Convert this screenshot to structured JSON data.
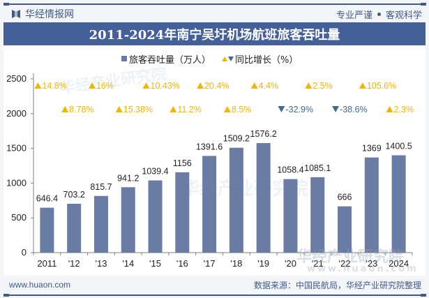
{
  "header": {
    "brand": "华经情报网",
    "slogan_left": "专业严谨",
    "slogan_right": "客观科学",
    "title": "2011-2024年南宁吴圩机场航班旅客吞吐量"
  },
  "legend": {
    "series_bar": "旅客吞吐量（万人）",
    "series_growth": "同比增长（%）"
  },
  "footer": {
    "url": "www.huaon.com",
    "source": "数据来源：中国民航局，华经产业研究院整理"
  },
  "watermarks": {
    "org": "华经产业研究院",
    "site": "www.huaon.com"
  },
  "colors": {
    "bar": "#697ca3",
    "up": "#f2b600",
    "down": "#3f6c8e",
    "brand": "#3e5a8a"
  },
  "chart_data": {
    "type": "bar",
    "title": "2011-2024年南宁吴圩机场航班旅客吞吐量",
    "xlabel": "",
    "ylabel": "",
    "ylim": [
      0,
      2500
    ],
    "yticks": [
      0,
      500,
      1000,
      1500,
      2000,
      2500
    ],
    "categories": [
      "2011",
      "'12",
      "'13",
      "'14",
      "'15",
      "'16",
      "'17",
      "'18",
      "'19",
      "'20",
      "'21",
      "'22",
      "'23",
      "2024"
    ],
    "legend_position": "top-center",
    "grid": false,
    "series": [
      {
        "name": "旅客吞吐量（万人）",
        "type": "bar",
        "values": [
          646.4,
          703.2,
          815.7,
          941.2,
          1039.4,
          1156,
          1391.6,
          1509.2,
          1576.2,
          1058.4,
          1085.1,
          666,
          1369,
          1400.5
        ],
        "labels": [
          "646.4",
          "703.2",
          "815.7",
          "941.2",
          "1039.4",
          "1156",
          "1391.6",
          "1509.2",
          "1576.2",
          "1058.4",
          "1085.1",
          "666",
          "1369",
          "1400.5"
        ]
      },
      {
        "name": "同比增长（%）",
        "type": "annotation",
        "values": [
          14.8,
          8.78,
          16,
          15.38,
          10.43,
          11.2,
          20.4,
          8.5,
          4.4,
          -32.9,
          2.5,
          -38.6,
          105.6,
          2.3
        ],
        "labels": [
          "14.8%",
          "8.78%",
          "16%",
          "15.38%",
          "10.43%",
          "11.2%",
          "20.4%",
          "8.5%",
          "4.4%",
          "-32.9%",
          "2.5%",
          "-38.6%",
          "105.6%",
          "2.3%"
        ]
      }
    ]
  }
}
